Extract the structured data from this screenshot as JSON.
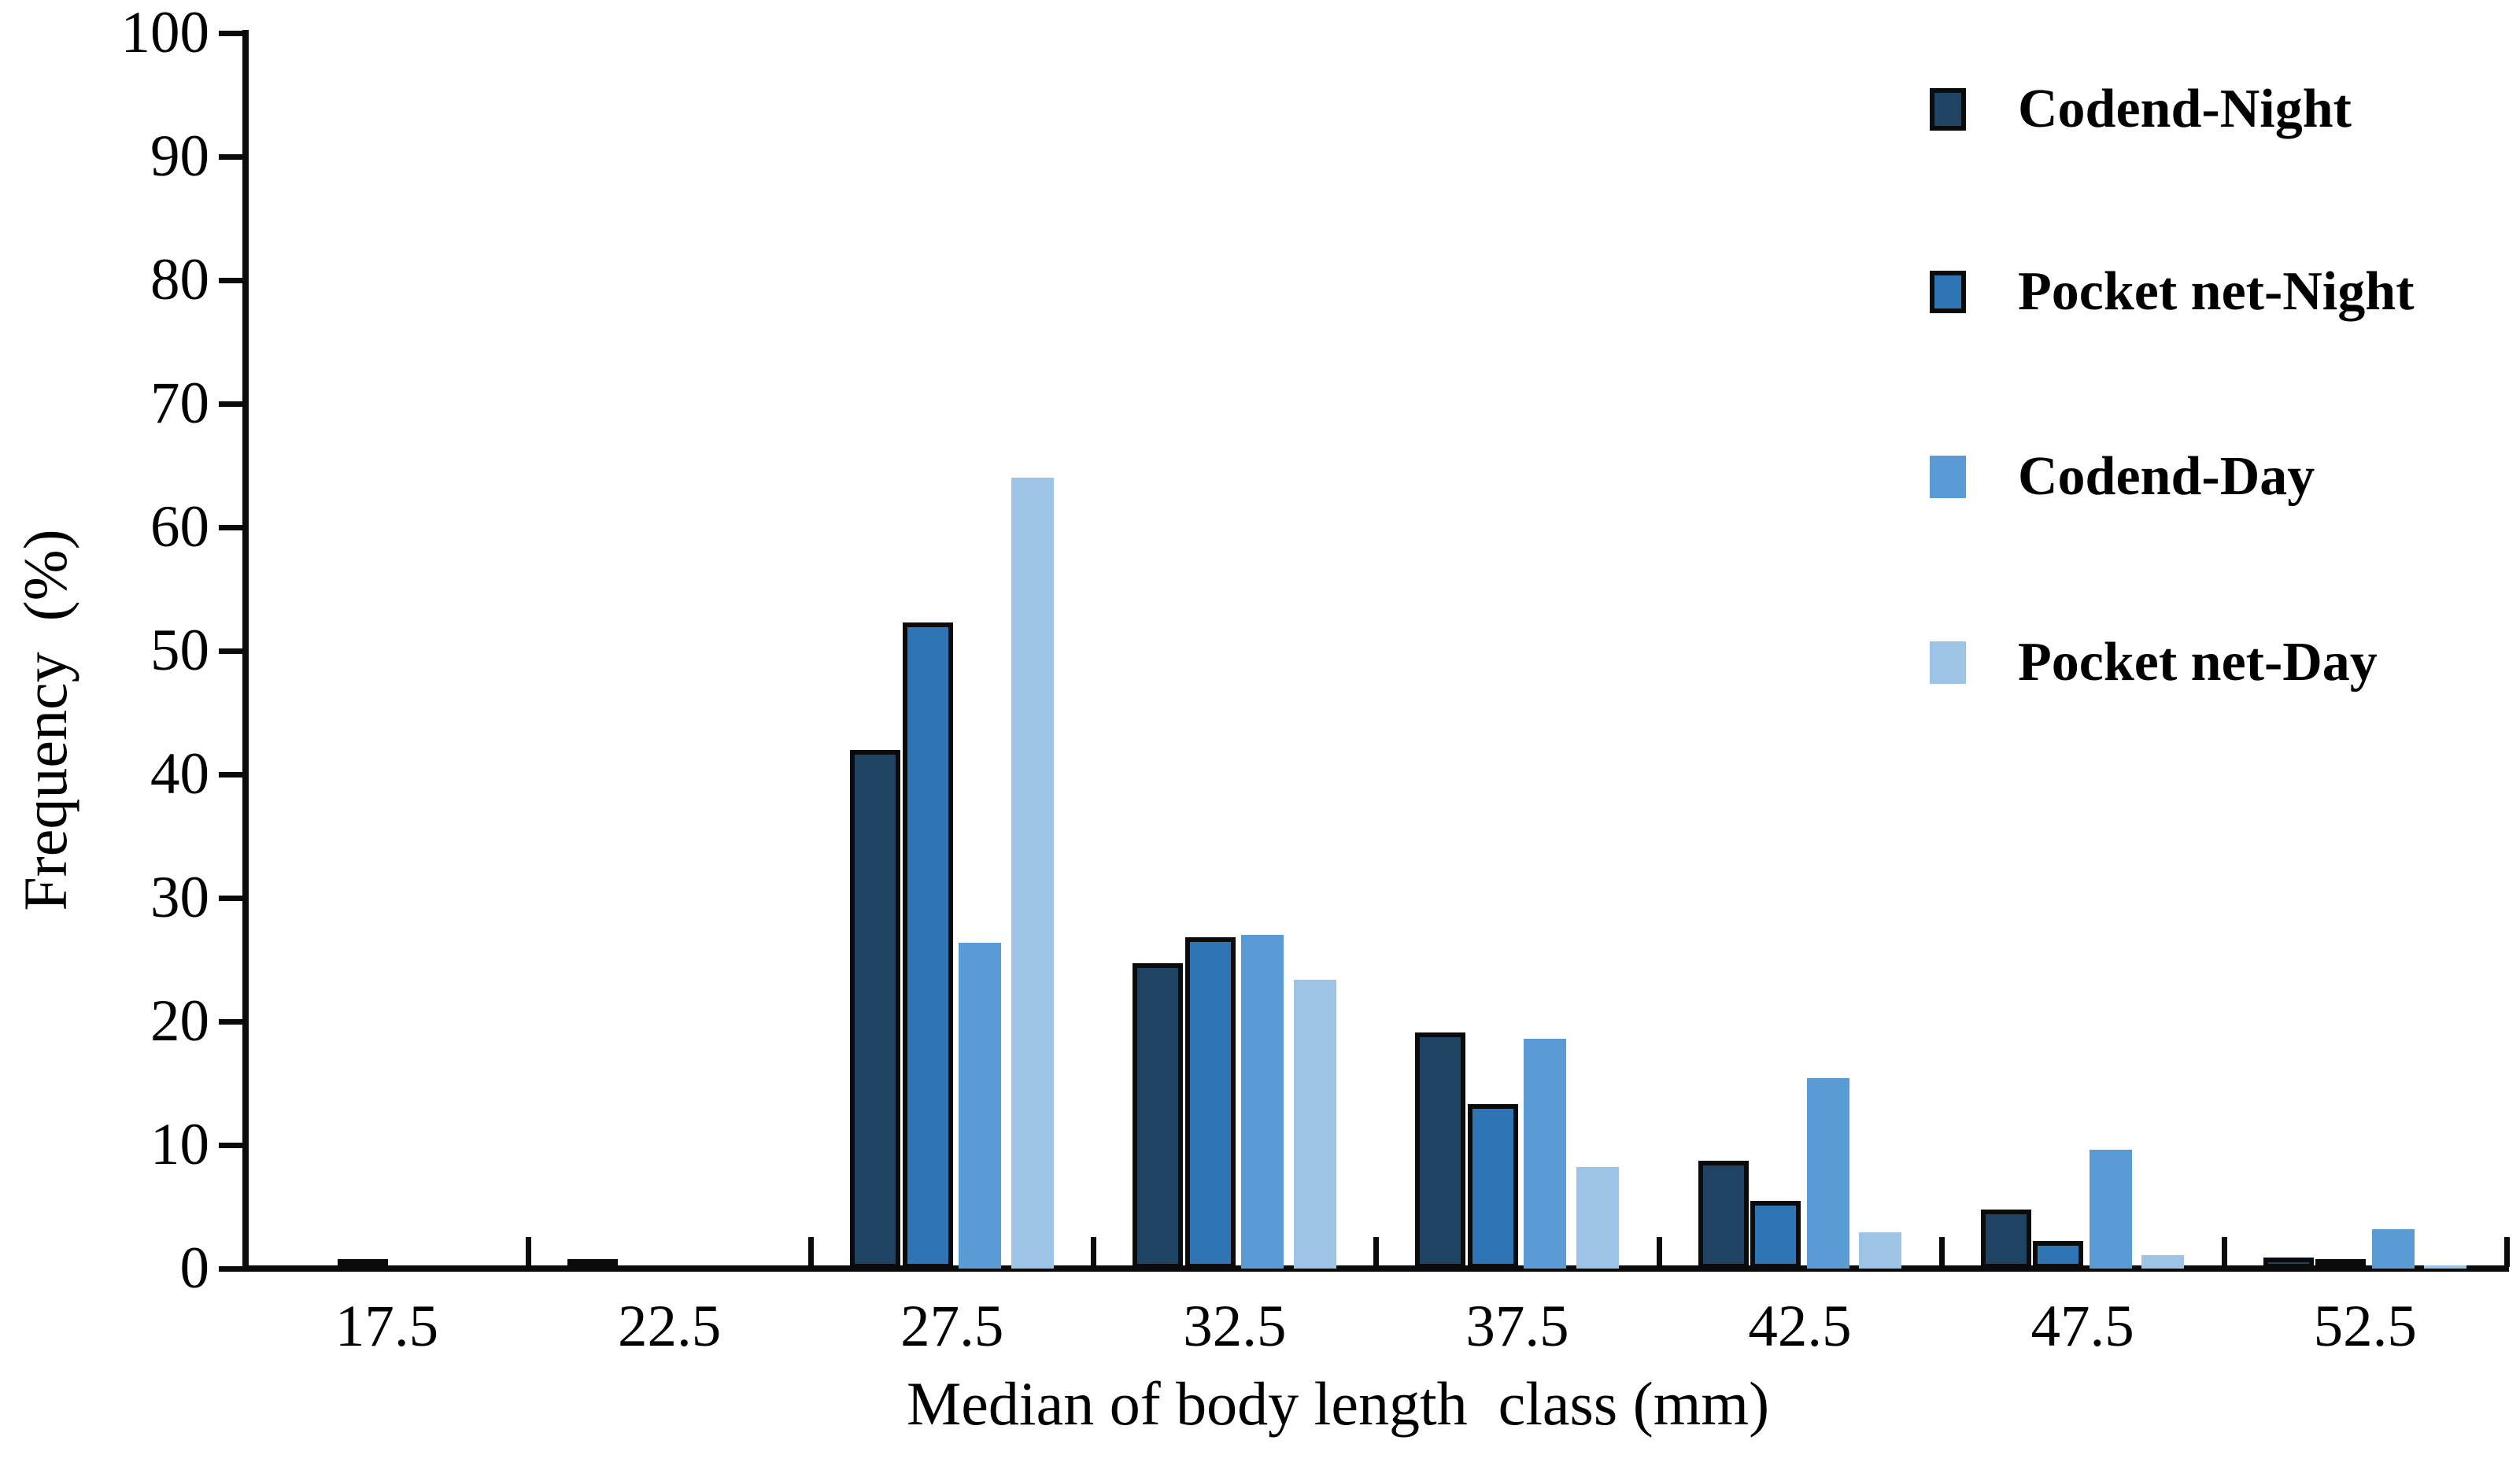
{
  "chart_data": {
    "type": "bar",
    "title": "",
    "xlabel": "Median of body length  class (mm)",
    "ylabel": "Frequency  (%)",
    "categories": [
      "17.5",
      "22.5",
      "27.5",
      "32.5",
      "37.5",
      "42.5",
      "47.5",
      "52.5"
    ],
    "series": [
      {
        "name": "Codend-Night",
        "color": "#1f4463",
        "border": "#0b0b0b",
        "values": [
          0,
          0.4,
          42.0,
          24.7,
          19.1,
          8.7,
          4.8,
          0.9
        ]
      },
      {
        "name": "Pocket net-Night",
        "color": "#2e75b6",
        "border": "#0b0b0b",
        "values": [
          0.3,
          0,
          52.3,
          26.8,
          13.3,
          5.5,
          2.2,
          0.5
        ]
      },
      {
        "name": "Codend-Day",
        "color": "#5b9bd5",
        "border": null,
        "values": [
          0,
          0,
          26.4,
          27.0,
          18.6,
          15.4,
          9.6,
          3.2
        ]
      },
      {
        "name": "Pocket net-Day",
        "color": "#9dc3e6",
        "border": null,
        "values": [
          0,
          0,
          64.0,
          23.4,
          8.2,
          2.9,
          1.1,
          0.25
        ]
      }
    ],
    "ylim": [
      0,
      100
    ],
    "yticks": [
      0,
      10,
      20,
      30,
      40,
      50,
      60,
      70,
      80,
      90,
      100
    ],
    "grid": false,
    "legend_position": "top-right",
    "axis_color": "#0b0b0b",
    "background_color": "#ffffff"
  }
}
